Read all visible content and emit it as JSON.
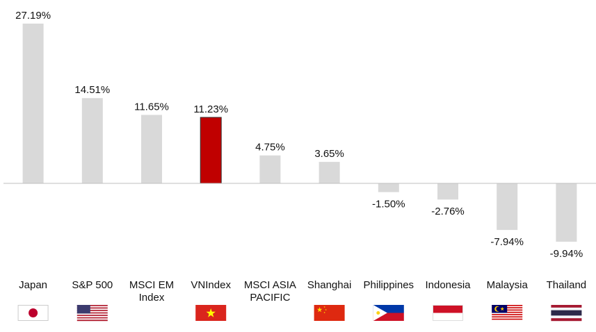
{
  "chart_data": {
    "type": "bar",
    "categories": [
      "Japan",
      "S&P 500",
      "MSCI EM Index",
      "VNIndex",
      "MSCI ASIA PACIFIC",
      "Shanghai",
      "Philippines",
      "Indonesia",
      "Malaysia",
      "Thailand"
    ],
    "values": [
      27.19,
      14.51,
      11.65,
      11.23,
      4.75,
      3.65,
      -1.5,
      -2.76,
      -7.94,
      -9.94
    ],
    "value_labels": [
      "27.19%",
      "14.51%",
      "11.65%",
      "11.23%",
      "4.75%",
      "3.65%",
      "-1.50%",
      "-2.76%",
      "-7.94%",
      "-9.94%"
    ],
    "colors": [
      "#d9d9d9",
      "#d9d9d9",
      "#d9d9d9",
      "#c00000",
      "#d9d9d9",
      "#d9d9d9",
      "#d9d9d9",
      "#d9d9d9",
      "#d9d9d9",
      "#d9d9d9"
    ]
  }
}
